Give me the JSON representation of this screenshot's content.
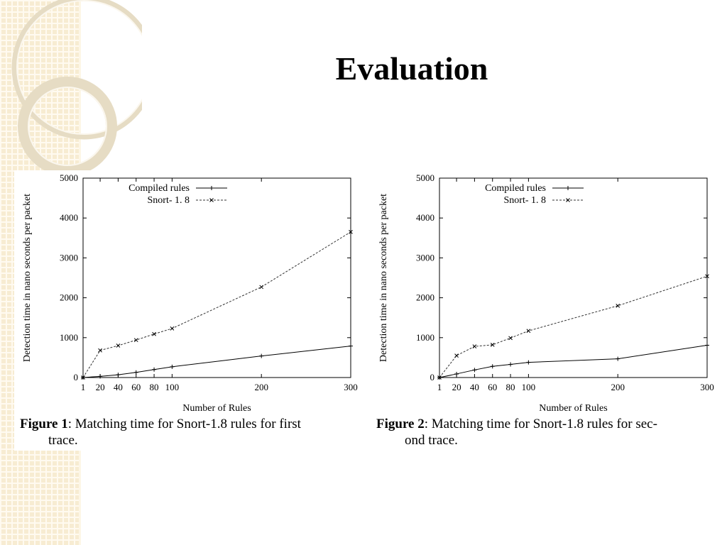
{
  "slide": {
    "title": "Evaluation"
  },
  "chart_data": [
    {
      "type": "line",
      "xlabel": "Number of Rules",
      "ylabel": "Detection time in nano seconds per packet",
      "xlim": [
        1,
        300
      ],
      "ylim": [
        0,
        5000
      ],
      "x_ticks": [
        1,
        20,
        40,
        60,
        80,
        100,
        200,
        300
      ],
      "y_ticks": [
        0,
        1000,
        2000,
        3000,
        4000,
        5000
      ],
      "legend_position": "top-center",
      "grid": false,
      "series": [
        {
          "name": "Compiled rules",
          "style": "solid",
          "marker": "+",
          "x": [
            1,
            20,
            40,
            60,
            80,
            100,
            200,
            300
          ],
          "y": [
            0,
            30,
            70,
            130,
            200,
            270,
            540,
            790
          ]
        },
        {
          "name": "Snort- 1. 8",
          "style": "dashed",
          "marker": "x",
          "x": [
            1,
            20,
            40,
            60,
            80,
            100,
            200,
            300
          ],
          "y": [
            0,
            680,
            800,
            940,
            1090,
            1230,
            2270,
            3650
          ]
        }
      ],
      "caption": {
        "label": "Figure 1",
        "text_line1": ": Matching time for Snort-1.8 rules for first",
        "text_line2": "trace."
      }
    },
    {
      "type": "line",
      "xlabel": "Number of Rules",
      "ylabel": "Detection time in nano seconds per packet",
      "xlim": [
        1,
        300
      ],
      "ylim": [
        0,
        5000
      ],
      "x_ticks": [
        1,
        20,
        40,
        60,
        80,
        100,
        200,
        300
      ],
      "y_ticks": [
        0,
        1000,
        2000,
        3000,
        4000,
        5000
      ],
      "legend_position": "top-center",
      "grid": false,
      "series": [
        {
          "name": "Compiled rules",
          "style": "solid",
          "marker": "+",
          "x": [
            1,
            20,
            40,
            60,
            80,
            100,
            200,
            300
          ],
          "y": [
            0,
            90,
            190,
            280,
            330,
            380,
            470,
            810
          ]
        },
        {
          "name": "Snort- 1. 8",
          "style": "dashed",
          "marker": "x",
          "x": [
            1,
            20,
            40,
            60,
            80,
            100,
            200,
            300
          ],
          "y": [
            0,
            550,
            780,
            820,
            990,
            1170,
            1800,
            2540
          ]
        }
      ],
      "caption": {
        "label": "Figure 2",
        "text_line1": ": Matching time for Snort-1.8 rules for sec-",
        "text_line2": "ond trace."
      }
    }
  ]
}
